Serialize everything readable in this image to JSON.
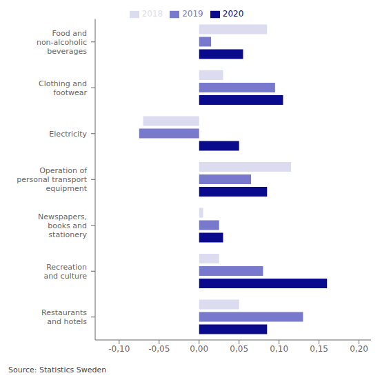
{
  "chart_data": {
    "type": "bar",
    "orientation": "horizontal",
    "categories": [
      "Food and\nnon-alcoholic\nbeverages",
      "Clothing and\nfootwear",
      "Electricity",
      "Operation of\npersonal transport\nequipment",
      "Newspapers,\nbooks and\nstationery",
      "Recreation\nand culture",
      "Restaurants\nand hotels"
    ],
    "series": [
      {
        "name": "2018",
        "color": "#dcdcf0",
        "values": [
          0.085,
          0.03,
          -0.07,
          0.115,
          0.005,
          0.025,
          0.05
        ]
      },
      {
        "name": "2019",
        "color": "#7878cc",
        "values": [
          0.015,
          0.095,
          -0.075,
          0.065,
          0.025,
          0.08,
          0.13
        ]
      },
      {
        "name": "2020",
        "color": "#0a0a8c",
        "values": [
          0.055,
          0.105,
          0.05,
          0.085,
          0.03,
          0.16,
          0.085
        ]
      }
    ],
    "xlim": [
      -0.13,
      0.215
    ],
    "xticks": [
      {
        "value": -0.1,
        "label": "-0,10"
      },
      {
        "value": -0.05,
        "label": "-0,05"
      },
      {
        "value": 0.0,
        "label": "0,00"
      },
      {
        "value": 0.05,
        "label": "0,05"
      },
      {
        "value": 0.1,
        "label": "0,10"
      },
      {
        "value": 0.15,
        "label": "0,15"
      },
      {
        "value": 0.2,
        "label": "0,20"
      }
    ],
    "legend": "top",
    "annotations": [
      "Source: Statistics Sweden"
    ]
  }
}
